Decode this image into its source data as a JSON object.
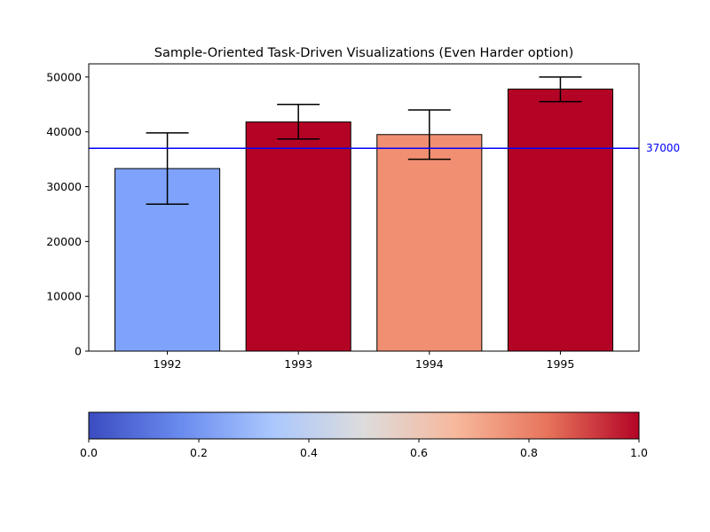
{
  "chart_data": {
    "type": "bar",
    "title": "Sample-Oriented Task-Driven Visualizations (Even Harder option)",
    "categories": [
      "1992",
      "1993",
      "1994",
      "1995"
    ],
    "values": [
      33300,
      41800,
      39500,
      47800
    ],
    "error_low": [
      26800,
      38700,
      35000,
      45500
    ],
    "error_high": [
      39800,
      45000,
      44000,
      50000
    ],
    "bar_colors": [
      "#7fa3fc",
      "#b40426",
      "#f18f72",
      "#b40426"
    ],
    "ylim": [
      0,
      52400
    ],
    "yticks": [
      0,
      10000,
      20000,
      30000,
      40000,
      50000
    ],
    "grid": false,
    "reference_line": {
      "value": 37000,
      "label": "37000",
      "color": "#0000ff"
    },
    "colorbar": {
      "colormap": "coolwarm",
      "range": [
        0,
        1
      ],
      "ticks": [
        "0.0",
        "0.2",
        "0.4",
        "0.6",
        "0.8",
        "1.0"
      ],
      "stops": [
        "#3b4cc0",
        "#6a8bef",
        "#aac7fd",
        "#dddcdc",
        "#f7b89c",
        "#e7745b",
        "#b40426"
      ]
    }
  }
}
